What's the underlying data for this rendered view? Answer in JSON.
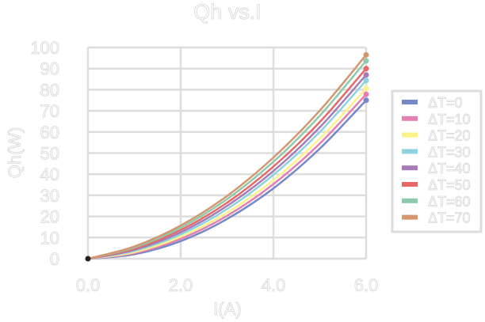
{
  "chart_data": {
    "type": "line",
    "title": "Qh vs.I",
    "xlabel": "I(A)",
    "ylabel": "Qh(W)",
    "xlim": [
      0,
      6
    ],
    "ylim": [
      0,
      100
    ],
    "xticks": [
      "0.0",
      "2.0",
      "4.0",
      "6.0"
    ],
    "yticks": [
      "0",
      "10",
      "20",
      "30",
      "40",
      "50",
      "60",
      "70",
      "80",
      "90",
      "100"
    ],
    "grid": true,
    "legend_position": "right",
    "x": [
      0,
      1,
      2,
      3,
      4,
      5,
      6
    ],
    "series": [
      {
        "name": "ΔT=0",
        "color": "#7588c8",
        "values": [
          0,
          2.1,
          8.3,
          18.8,
          33.3,
          52.1,
          75.0
        ]
      },
      {
        "name": "ΔT=10",
        "color": "#e57fb1",
        "values": [
          0,
          2.6,
          9.4,
          20.3,
          35.3,
          54.5,
          77.8
        ]
      },
      {
        "name": "ΔT=20",
        "color": "#fdf28a",
        "values": [
          0,
          3.1,
          10.4,
          21.8,
          37.2,
          56.9,
          80.6
        ]
      },
      {
        "name": "ΔT=30",
        "color": "#8dd3df",
        "values": [
          0,
          3.7,
          11.5,
          23.5,
          39.7,
          60.0,
          84.4
        ]
      },
      {
        "name": "ΔT=40",
        "color": "#a77bb8",
        "values": [
          0,
          4.2,
          12.5,
          25.0,
          41.5,
          62.2,
          87.0
        ]
      },
      {
        "name": "ΔT=50",
        "color": "#e86868",
        "values": [
          0,
          4.7,
          13.6,
          26.5,
          43.6,
          64.7,
          90.0
        ]
      },
      {
        "name": "ΔT=60",
        "color": "#8ccaab",
        "values": [
          0,
          5.3,
          14.7,
          28.2,
          45.9,
          67.7,
          93.7
        ]
      },
      {
        "name": "ΔT=70",
        "color": "#d4956f",
        "values": [
          0,
          5.8,
          15.7,
          29.7,
          47.9,
          70.1,
          96.5
        ]
      }
    ]
  }
}
